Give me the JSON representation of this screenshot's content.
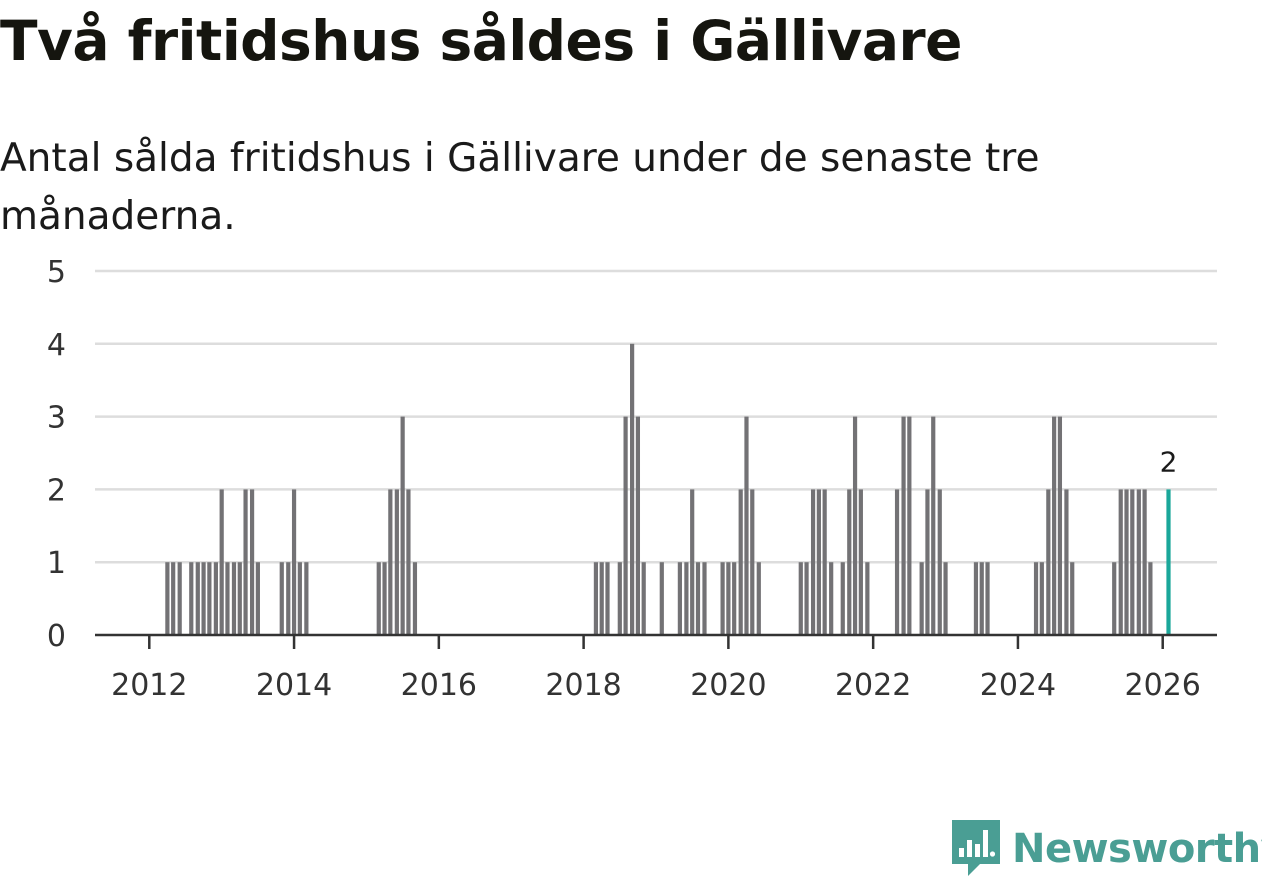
{
  "title": "Två fritidshus såldes i Gällivare",
  "subtitle": "Antal sålda fritidshus i Gällivare under de senaste tre månaderna.",
  "brand": {
    "name": "Newsworthy",
    "icon": "newsworthy-logo-icon"
  },
  "colors": {
    "bar": "#737275",
    "highlight": "#1aa79a",
    "grid": "#dddddd",
    "axis": "#333333",
    "brand": "#4a9e94"
  },
  "chart_data": {
    "type": "bar",
    "title": "Två fritidshus såldes i Gällivare",
    "xlabel": "",
    "ylabel": "",
    "ylim": [
      0,
      5
    ],
    "yticks": [
      0,
      1,
      2,
      3,
      4,
      5
    ],
    "xticks": [
      "2012",
      "2014",
      "2016",
      "2018",
      "2020",
      "2022",
      "2024",
      "2026"
    ],
    "grid": true,
    "x_range": [
      2011.25,
      2026.75
    ],
    "series": [
      {
        "name": "Antal sålda fritidshus",
        "x": [
          2012.25,
          2012.33,
          2012.42,
          2012.58,
          2012.67,
          2012.75,
          2012.83,
          2012.92,
          2013.0,
          2013.08,
          2013.17,
          2013.25,
          2013.33,
          2013.42,
          2013.5,
          2013.83,
          2013.92,
          2014.0,
          2014.08,
          2014.17,
          2015.17,
          2015.25,
          2015.33,
          2015.42,
          2015.5,
          2015.58,
          2015.67,
          2018.17,
          2018.25,
          2018.33,
          2018.5,
          2018.58,
          2018.67,
          2018.75,
          2018.83,
          2019.08,
          2019.33,
          2019.42,
          2019.5,
          2019.58,
          2019.67,
          2019.92,
          2020.0,
          2020.08,
          2020.17,
          2020.25,
          2020.33,
          2020.42,
          2021.0,
          2021.08,
          2021.17,
          2021.25,
          2021.33,
          2021.42,
          2021.58,
          2021.67,
          2021.75,
          2021.83,
          2021.92,
          2022.33,
          2022.42,
          2022.5,
          2022.67,
          2022.75,
          2022.83,
          2022.92,
          2023.0,
          2023.42,
          2023.5,
          2023.58,
          2024.25,
          2024.33,
          2024.42,
          2024.5,
          2024.58,
          2024.67,
          2024.75,
          2025.33,
          2025.42,
          2025.5,
          2025.58,
          2025.67,
          2025.75,
          2025.83
        ],
        "values": [
          1,
          1,
          1,
          1,
          1,
          1,
          1,
          1,
          2,
          1,
          1,
          1,
          2,
          2,
          1,
          1,
          1,
          2,
          1,
          1,
          1,
          1,
          2,
          2,
          3,
          2,
          1,
          1,
          1,
          1,
          1,
          3,
          4,
          3,
          1,
          1,
          1,
          1,
          2,
          1,
          1,
          1,
          1,
          1,
          2,
          3,
          2,
          1,
          1,
          1,
          2,
          2,
          2,
          1,
          1,
          2,
          3,
          2,
          1,
          2,
          3,
          3,
          1,
          2,
          3,
          2,
          1,
          1,
          1,
          1,
          1,
          1,
          2,
          3,
          3,
          2,
          1,
          1,
          2,
          2,
          2,
          2,
          2,
          1
        ]
      }
    ],
    "highlight": {
      "x": 2026.08,
      "value": 2,
      "label": "2"
    }
  }
}
